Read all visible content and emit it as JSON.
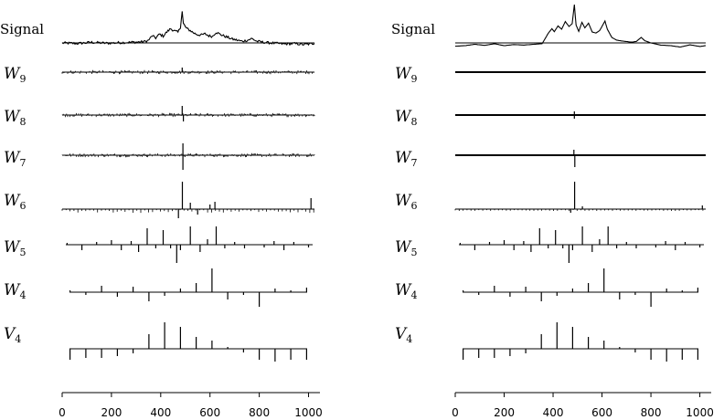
{
  "chart_data": [
    {
      "type": "line",
      "panel": "left",
      "description_rows": [
        "Signal",
        "W9",
        "W8",
        "W7",
        "W6",
        "W5",
        "W4",
        "V4"
      ],
      "rows": [
        {
          "label": "Signal",
          "kind": "signal",
          "points": [
            [
              0,
              0
            ],
            [
              60,
              -0.2
            ],
            [
              120,
              0.2
            ],
            [
              180,
              -0.1
            ],
            [
              240,
              0.1
            ],
            [
              300,
              0.3
            ],
            [
              330,
              0.4
            ],
            [
              350,
              0.9
            ],
            [
              365,
              2.6
            ],
            [
              380,
              1.8
            ],
            [
              395,
              3.2
            ],
            [
              410,
              2.5
            ],
            [
              425,
              4.0
            ],
            [
              440,
              5.2
            ],
            [
              455,
              4.4
            ],
            [
              470,
              3.9
            ],
            [
              480,
              5.8
            ],
            [
              487,
              11.5
            ],
            [
              492,
              7.0
            ],
            [
              505,
              5.3
            ],
            [
              520,
              4.5
            ],
            [
              535,
              3.6
            ],
            [
              550,
              3.0
            ],
            [
              565,
              2.9
            ],
            [
              580,
              3.3
            ],
            [
              595,
              2.6
            ],
            [
              610,
              2.4
            ],
            [
              625,
              3.9
            ],
            [
              640,
              3.2
            ],
            [
              655,
              2.6
            ],
            [
              670,
              2.1
            ],
            [
              690,
              1.4
            ],
            [
              710,
              1.0
            ],
            [
              730,
              0.6
            ],
            [
              750,
              0.9
            ],
            [
              770,
              1.6
            ],
            [
              790,
              0.6
            ],
            [
              820,
              0.2
            ],
            [
              860,
              -0.1
            ],
            [
              900,
              -0.4
            ],
            [
              940,
              -0.2
            ],
            [
              980,
              -0.6
            ],
            [
              1024,
              -0.2
            ]
          ],
          "noise": 0.45
        },
        {
          "label": "W9",
          "kind": "detail",
          "density": "dense",
          "spikes": [
            [
              487,
              5
            ]
          ]
        },
        {
          "label": "W8",
          "kind": "detail",
          "density": "dense",
          "spikes": [
            [
              487,
              10
            ],
            [
              492,
              -7
            ]
          ]
        },
        {
          "label": "W7",
          "kind": "detail",
          "density": "dense",
          "spikes": [
            [
              490,
              13
            ],
            [
              490,
              -16
            ]
          ]
        },
        {
          "label": "W6",
          "kind": "detail",
          "density": "regular",
          "spikes": [
            [
              488,
              30
            ],
            [
              472,
              -10
            ],
            [
              520,
              7
            ],
            [
              550,
              -6
            ],
            [
              600,
              5
            ],
            [
              620,
              8
            ],
            [
              1010,
              12
            ]
          ]
        },
        {
          "label": "W5",
          "kind": "coefficients",
          "spikes": [
            [
              20,
              2
            ],
            [
              80,
              -6
            ],
            [
              140,
              3
            ],
            [
              200,
              5
            ],
            [
              240,
              -6
            ],
            [
              280,
              4
            ],
            [
              310,
              -8
            ],
            [
              345,
              18
            ],
            [
              380,
              -4
            ],
            [
              410,
              16
            ],
            [
              440,
              -4
            ],
            [
              465,
              -20
            ],
            [
              480,
              -6
            ],
            [
              520,
              20
            ],
            [
              560,
              -8
            ],
            [
              590,
              6
            ],
            [
              625,
              20
            ],
            [
              660,
              -4
            ],
            [
              700,
              3
            ],
            [
              740,
              -4
            ],
            [
              820,
              -3
            ],
            [
              860,
              4
            ],
            [
              900,
              -6
            ],
            [
              940,
              3
            ],
            [
              1000,
              -3
            ]
          ]
        },
        {
          "label": "W4",
          "kind": "coefficients",
          "spikes": [
            [
              32,
              2
            ],
            [
              96,
              -3
            ],
            [
              160,
              7
            ],
            [
              224,
              -5
            ],
            [
              288,
              6
            ],
            [
              352,
              -10
            ],
            [
              416,
              -4
            ],
            [
              480,
              4
            ],
            [
              544,
              10
            ],
            [
              608,
              26
            ],
            [
              672,
              -8
            ],
            [
              736,
              -3
            ],
            [
              800,
              -16
            ],
            [
              864,
              4
            ],
            [
              928,
              2
            ],
            [
              992,
              5
            ]
          ]
        },
        {
          "label": "V4",
          "kind": "coefficients",
          "spikes": [
            [
              32,
              -12
            ],
            [
              96,
              -10
            ],
            [
              160,
              -10
            ],
            [
              224,
              -8
            ],
            [
              288,
              -5
            ],
            [
              352,
              16
            ],
            [
              416,
              29
            ],
            [
              480,
              24
            ],
            [
              544,
              13
            ],
            [
              608,
              9
            ],
            [
              672,
              2
            ],
            [
              736,
              -4
            ],
            [
              800,
              -12
            ],
            [
              864,
              -14
            ],
            [
              928,
              -12
            ],
            [
              992,
              -12
            ]
          ]
        }
      ]
    },
    {
      "type": "line",
      "panel": "right",
      "rows": [
        {
          "label": "Signal",
          "kind": "signal",
          "points": [
            [
              0,
              -1.2
            ],
            [
              40,
              -1.0
            ],
            [
              80,
              -0.5
            ],
            [
              120,
              -0.9
            ],
            [
              160,
              -0.3
            ],
            [
              200,
              -1.0
            ],
            [
              240,
              -0.6
            ],
            [
              280,
              -0.8
            ],
            [
              320,
              -0.5
            ],
            [
              355,
              -0.3
            ],
            [
              365,
              1.2
            ],
            [
              380,
              3.5
            ],
            [
              395,
              5.2
            ],
            [
              405,
              4.1
            ],
            [
              420,
              6.2
            ],
            [
              435,
              5.0
            ],
            [
              450,
              7.8
            ],
            [
              465,
              6.0
            ],
            [
              478,
              7.0
            ],
            [
              487,
              14.0
            ],
            [
              494,
              6.5
            ],
            [
              505,
              4.2
            ],
            [
              518,
              7.5
            ],
            [
              530,
              5.5
            ],
            [
              545,
              7.2
            ],
            [
              560,
              4.0
            ],
            [
              575,
              3.6
            ],
            [
              590,
              4.5
            ],
            [
              600,
              6.0
            ],
            [
              612,
              8.0
            ],
            [
              622,
              5.0
            ],
            [
              640,
              2.0
            ],
            [
              660,
              1.0
            ],
            [
              690,
              0.6
            ],
            [
              720,
              0.3
            ],
            [
              740,
              0.5
            ],
            [
              760,
              2.0
            ],
            [
              775,
              0.8
            ],
            [
              800,
              0.0
            ],
            [
              840,
              -0.8
            ],
            [
              880,
              -1.0
            ],
            [
              920,
              -1.5
            ],
            [
              960,
              -0.7
            ],
            [
              1000,
              -1.3
            ],
            [
              1024,
              -1.0
            ]
          ],
          "noise": 0
        },
        {
          "label": "W9",
          "kind": "flat",
          "spikes": []
        },
        {
          "label": "W8",
          "kind": "detail",
          "density": "none",
          "spikes": [
            [
              487,
              4
            ],
            [
              487,
              -4
            ]
          ]
        },
        {
          "label": "W7",
          "kind": "detail",
          "density": "none",
          "spikes": [
            [
              485,
              6
            ],
            [
              489,
              -13
            ]
          ]
        },
        {
          "label": "W6",
          "kind": "detail",
          "density": "sparse",
          "spikes": [
            [
              488,
              30
            ],
            [
              472,
              -4
            ],
            [
              520,
              3
            ],
            [
              1010,
              4
            ]
          ]
        },
        {
          "label": "W5",
          "kind": "coefficients",
          "spikes": [
            [
              20,
              2
            ],
            [
              80,
              -6
            ],
            [
              140,
              3
            ],
            [
              200,
              5
            ],
            [
              240,
              -6
            ],
            [
              280,
              4
            ],
            [
              310,
              -8
            ],
            [
              345,
              18
            ],
            [
              380,
              -4
            ],
            [
              410,
              16
            ],
            [
              440,
              -4
            ],
            [
              465,
              -20
            ],
            [
              480,
              -6
            ],
            [
              520,
              20
            ],
            [
              560,
              -8
            ],
            [
              590,
              6
            ],
            [
              625,
              20
            ],
            [
              660,
              -4
            ],
            [
              700,
              3
            ],
            [
              740,
              -4
            ],
            [
              820,
              -3
            ],
            [
              860,
              4
            ],
            [
              900,
              -6
            ],
            [
              940,
              3
            ],
            [
              1000,
              -3
            ]
          ]
        },
        {
          "label": "W4",
          "kind": "coefficients",
          "spikes": [
            [
              32,
              2
            ],
            [
              96,
              -3
            ],
            [
              160,
              7
            ],
            [
              224,
              -5
            ],
            [
              288,
              6
            ],
            [
              352,
              -10
            ],
            [
              416,
              -4
            ],
            [
              480,
              4
            ],
            [
              544,
              10
            ],
            [
              608,
              26
            ],
            [
              672,
              -8
            ],
            [
              736,
              -3
            ],
            [
              800,
              -16
            ],
            [
              864,
              4
            ],
            [
              928,
              2
            ],
            [
              992,
              5
            ]
          ]
        },
        {
          "label": "V4",
          "kind": "coefficients",
          "spikes": [
            [
              32,
              -12
            ],
            [
              96,
              -10
            ],
            [
              160,
              -10
            ],
            [
              224,
              -8
            ],
            [
              288,
              -5
            ],
            [
              352,
              16
            ],
            [
              416,
              29
            ],
            [
              480,
              24
            ],
            [
              544,
              13
            ],
            [
              608,
              9
            ],
            [
              672,
              2
            ],
            [
              736,
              -4
            ],
            [
              800,
              -12
            ],
            [
              864,
              -14
            ],
            [
              928,
              -12
            ],
            [
              992,
              -12
            ]
          ]
        }
      ]
    }
  ],
  "axis": {
    "xlim": [
      0,
      1024
    ],
    "ticks": [
      "0",
      "200",
      "400",
      "600",
      "800",
      "1000"
    ],
    "tick_values": [
      0,
      200,
      400,
      600,
      800,
      1000
    ]
  },
  "labels": {
    "signal": "Signal",
    "rows": [
      {
        "base": "W",
        "sub": "9"
      },
      {
        "base": "W",
        "sub": "8"
      },
      {
        "base": "W",
        "sub": "7"
      },
      {
        "base": "W",
        "sub": "6"
      },
      {
        "base": "W",
        "sub": "5"
      },
      {
        "base": "W",
        "sub": "4"
      },
      {
        "base": "V",
        "sub": "4"
      }
    ]
  }
}
